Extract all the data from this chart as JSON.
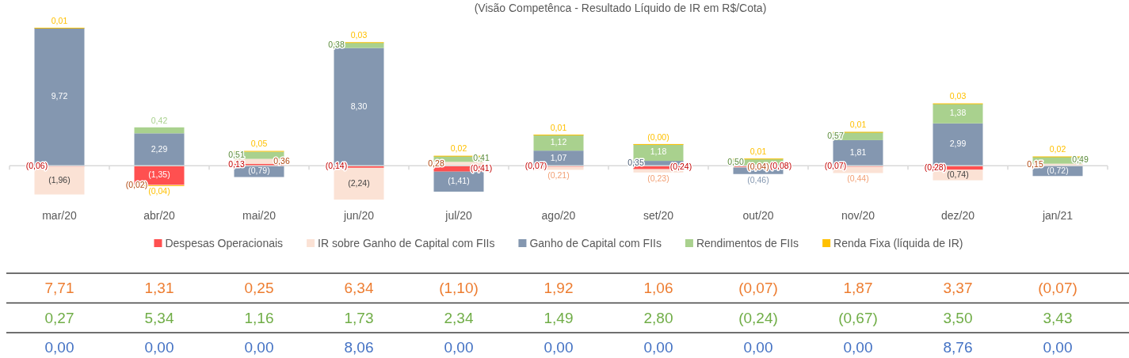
{
  "chart_data": [
    {
      "type": "bar",
      "title": "(Visão Competênca - Resultado Líquido de IR em R$/Cota)",
      "stacked": true,
      "legend": "bottom",
      "tick_labels": "x",
      "categories": [
        "mar/20",
        "abr/20",
        "mai/20",
        "jun/20",
        "jul/20",
        "ago/20",
        "set/20",
        "out/20",
        "nov/20",
        "dez/20",
        "jan/21"
      ],
      "series": [
        {
          "name": "Despesas Operacionais",
          "color": "#ff5050",
          "values": [
            -0.06,
            -1.35,
            0.13,
            -0.14,
            -0.41,
            -0.07,
            -0.24,
            -0.08,
            -0.07,
            -0.28,
            null
          ],
          "value_labels": [
            "(0,06)",
            "(1,35)",
            "0,13",
            "(0,14)",
            "(0,41)",
            "(0,07)",
            "(0,24)",
            "(0,08)",
            "(0,07)",
            "(0,28)",
            null
          ]
        },
        {
          "name": "IR sobre Ganho de Capital com FIIs",
          "color": "#fbe2d5",
          "values": [
            -1.96,
            -0.02,
            0.36,
            -2.24,
            0.28,
            -0.21,
            -0.23,
            -0.04,
            -0.44,
            -0.74,
            0.15
          ],
          "value_labels": [
            "(1,96)",
            "(0,02)",
            "0,36",
            "(2,24)",
            "0,28",
            "(0,21)",
            "(0,23)",
            "(0,04)",
            "(0,44)",
            "(0,74)",
            "0,15"
          ]
        },
        {
          "name": "Ganho de Capital com FIIs",
          "color": "#8497b0",
          "values": [
            9.72,
            2.29,
            -0.79,
            8.3,
            -1.41,
            1.07,
            0.35,
            -0.46,
            1.81,
            2.99,
            -0.72
          ],
          "value_labels": [
            "9,72",
            "2,29",
            "(0,79)",
            "8,30",
            "(1,41)",
            "1,07",
            "0,35",
            "(0,46)",
            "1,81",
            "2,99",
            "(0,72)"
          ]
        },
        {
          "name": "Rendimentos de FIIs",
          "color": "#a9d18e",
          "values": [
            null,
            0.42,
            0.51,
            0.38,
            0.41,
            1.12,
            1.18,
            0.5,
            0.57,
            1.38,
            0.49
          ],
          "value_labels": [
            null,
            "0,42",
            "0,51",
            "0,38",
            "0,41",
            "1,12",
            "1,18",
            "0,50",
            "0,57",
            "1,38",
            "0,49"
          ]
        },
        {
          "name": "Renda Fixa (líquida de IR)",
          "color": "#ffc000",
          "values": [
            0.01,
            -0.04,
            0.05,
            0.03,
            0.02,
            0.01,
            0,
            0.01,
            0.01,
            0.03,
            0.02
          ],
          "value_labels": [
            "0,01",
            "(0,04)",
            "0,05",
            "0,03",
            "0,02",
            "0,01",
            "(0,00)",
            "0,01",
            "0,01",
            "0,03",
            "0,02"
          ]
        }
      ]
    },
    {
      "type": "other",
      "color": "#ed7d31",
      "annotations": [
        "7,71",
        "1,31",
        "0,25",
        "6,34",
        "(1,10)",
        "1,92",
        "1,06",
        "(0,07)",
        "1,87",
        "3,37",
        "(0,07)"
      ]
    },
    {
      "type": "other",
      "color": "#70ad47",
      "annotations": [
        "0,27",
        "5,34",
        "1,16",
        "1,73",
        "2,34",
        "1,49",
        "2,80",
        "(0,24)",
        "(0,67)",
        "3,50",
        "3,43"
      ]
    },
    {
      "type": "other",
      "color": "#4472c4",
      "annotations": [
        "0,00",
        "0,00",
        "0,00",
        "8,06",
        "0,00",
        "0,00",
        "0,00",
        "0,00",
        "0,00",
        "8,76",
        "0,00"
      ]
    }
  ]
}
